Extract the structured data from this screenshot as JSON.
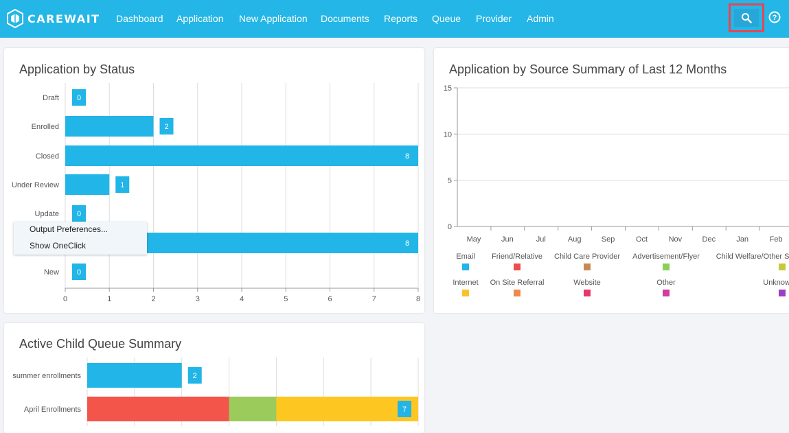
{
  "app": {
    "brand": "CAREWAIT",
    "nav": [
      "Dashboard",
      "Application",
      "New Application",
      "Documents",
      "Reports",
      "Queue",
      "Provider",
      "Admin"
    ]
  },
  "icons": {
    "search": "search-icon",
    "help": "help-icon",
    "logo": "carewait-logo-icon"
  },
  "colors": {
    "navbar": "#23b6e6",
    "bar_blue": "#22b5e7",
    "highlight_red": "#e84650"
  },
  "status_card": {
    "title": "Application by Status",
    "chart_data": {
      "type": "bar",
      "orientation": "horizontal",
      "categories": [
        "Draft",
        "Enrolled",
        "Closed",
        "Under Review",
        "Update",
        "",
        "New"
      ],
      "values": [
        0,
        2,
        8,
        1,
        0,
        8,
        0
      ],
      "xlim": [
        0,
        8
      ],
      "x_ticks": [
        "0",
        "1",
        "2",
        "3",
        "4",
        "5",
        "6",
        "7",
        "8"
      ],
      "grid": true
    }
  },
  "context_menu": {
    "items": [
      "Output Preferences...",
      "Show OneClick"
    ]
  },
  "source_card": {
    "title": "Application by Source Summary of Last 12 Months",
    "chart_data": {
      "type": "bar",
      "categories": [
        "May",
        "Jun",
        "Jul",
        "Aug",
        "Sep",
        "Oct",
        "Nov",
        "Dec",
        "Jan",
        "Feb"
      ],
      "ylim": [
        0,
        15
      ],
      "y_ticks": [
        "0",
        "5",
        "10",
        "15"
      ],
      "grid": true,
      "legend_position": "bottom",
      "series": [
        {
          "name": "Email",
          "color": "#22b5e7",
          "values": [
            0,
            0,
            0,
            0,
            0,
            0,
            0,
            0,
            0,
            0
          ]
        },
        {
          "name": "Friend/Relative",
          "color": "#ee4b4b",
          "values": [
            0,
            0,
            0,
            0,
            0,
            0,
            0,
            0,
            0,
            0
          ]
        },
        {
          "name": "Child Care Provider",
          "color": "#c68a52",
          "values": [
            0,
            0,
            0,
            0,
            0,
            0,
            0,
            0,
            0,
            0
          ]
        },
        {
          "name": "Advertisement/Flyer",
          "color": "#8ccf55",
          "values": [
            0,
            0,
            0,
            0,
            0,
            0,
            0,
            0,
            0,
            0
          ]
        },
        {
          "name": "Child Welfare/Other Sc",
          "color": "#c8c83c",
          "values": [
            0,
            0,
            0,
            0,
            0,
            0,
            0,
            0,
            0,
            0
          ]
        },
        {
          "name": "Internet",
          "color": "#f9c22a",
          "values": [
            0,
            0,
            0,
            0,
            0,
            0,
            0,
            0,
            0,
            0
          ]
        },
        {
          "name": "On Site Referral",
          "color": "#f08a4b",
          "values": [
            0,
            0,
            0,
            0,
            0,
            0,
            0,
            0,
            0,
            0
          ]
        },
        {
          "name": "Website",
          "color": "#e8366b",
          "values": [
            0,
            0,
            0,
            0,
            0,
            0,
            0,
            0,
            0,
            0
          ]
        },
        {
          "name": "Other",
          "color": "#d33aa2",
          "values": [
            0,
            0,
            0,
            0,
            0,
            0,
            0,
            0,
            0,
            0
          ]
        },
        {
          "name": "Unknow",
          "color": "#9c3fc4",
          "values": [
            0,
            0,
            0,
            0,
            0,
            0,
            0,
            0,
            0,
            0
          ]
        }
      ]
    }
  },
  "queue_card": {
    "title": "Active Child Queue Summary",
    "chart_data": {
      "type": "bar",
      "orientation": "horizontal",
      "stacked": true,
      "categories": [
        "summer enrollments",
        "April Enrollments"
      ],
      "totals": [
        2,
        7
      ],
      "xlim": [
        0,
        7
      ],
      "series": [
        {
          "color": "#22b5e7",
          "values": [
            2,
            0
          ]
        },
        {
          "color": "#f4554a",
          "values": [
            0,
            3
          ]
        },
        {
          "color": "#9bcb5a",
          "values": [
            0,
            1
          ]
        },
        {
          "color": "#fdc621",
          "values": [
            0,
            3
          ]
        }
      ]
    }
  }
}
